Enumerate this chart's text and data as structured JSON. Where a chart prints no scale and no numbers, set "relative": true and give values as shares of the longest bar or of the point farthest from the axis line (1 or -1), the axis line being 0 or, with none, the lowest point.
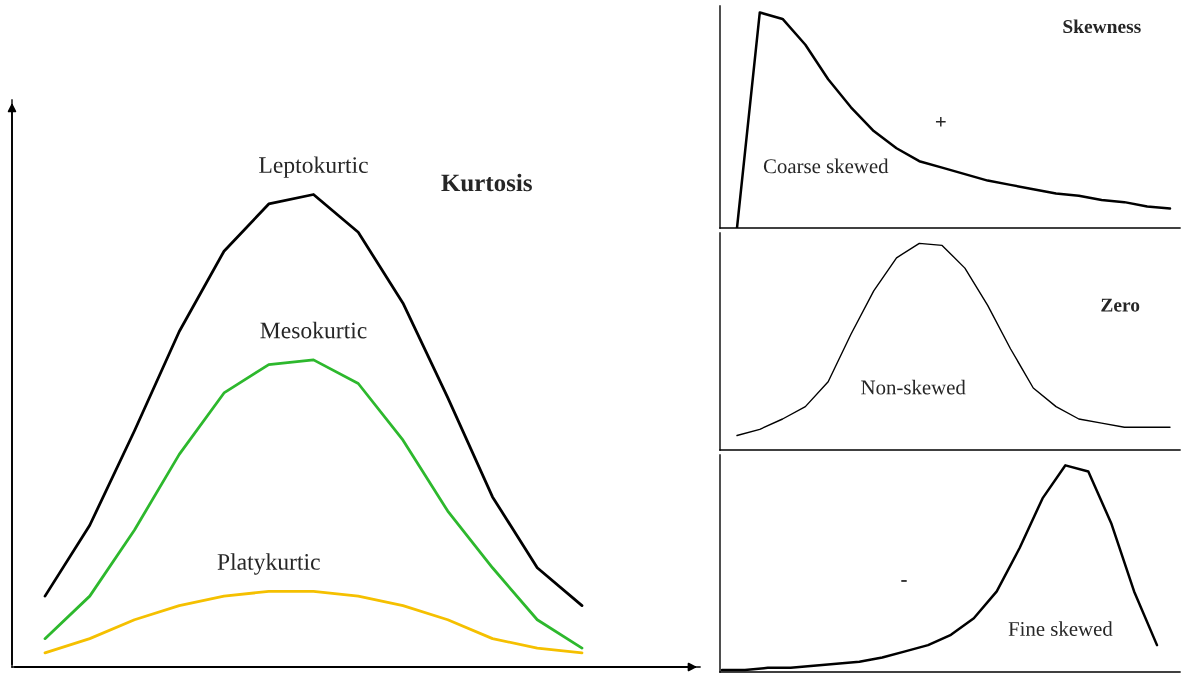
{
  "chart_data": [
    {
      "type": "line",
      "relative": true,
      "title": "Kurtosis",
      "categories": [
        null,
        null,
        null,
        null,
        null,
        null,
        null,
        null,
        null,
        null,
        null,
        null,
        null
      ],
      "series": [
        {
          "name": "Leptokurtic",
          "color": "#000000",
          "values": [
            0.15,
            0.3,
            0.5,
            0.71,
            0.88,
            0.98,
            1.0,
            0.92,
            0.77,
            0.57,
            0.36,
            0.21,
            0.13
          ]
        },
        {
          "name": "Mesokurtic",
          "color": "#2db82d",
          "values": [
            0.06,
            0.15,
            0.29,
            0.45,
            0.58,
            0.64,
            0.65,
            0.6,
            0.48,
            0.33,
            0.21,
            0.1,
            0.04
          ]
        },
        {
          "name": "Platykurtic",
          "color": "#f5c000",
          "values": [
            0.03,
            0.06,
            0.1,
            0.13,
            0.15,
            0.16,
            0.16,
            0.15,
            0.13,
            0.1,
            0.06,
            0.04,
            0.03
          ]
        }
      ]
    },
    {
      "type": "line",
      "relative": true,
      "title": "Skewness",
      "annotations": [
        "Coarse skewed",
        "+"
      ],
      "categories": [
        null,
        null,
        null,
        null,
        null,
        null,
        null,
        null,
        null,
        null,
        null,
        null,
        null,
        null,
        null,
        null,
        null,
        null,
        null,
        null
      ],
      "series": [
        {
          "color": "#000000",
          "values": [
            0,
            1.0,
            0.97,
            0.85,
            0.69,
            0.56,
            0.45,
            0.37,
            0.31,
            0.28,
            0.25,
            0.22,
            0.2,
            0.18,
            0.16,
            0.15,
            0.13,
            0.12,
            0.1,
            0.09
          ]
        }
      ]
    },
    {
      "type": "line",
      "relative": true,
      "title": "Zero",
      "annotations": [
        "Non-skewed"
      ],
      "categories": [
        null,
        null,
        null,
        null,
        null,
        null,
        null,
        null,
        null,
        null,
        null,
        null,
        null,
        null,
        null,
        null,
        null,
        null,
        null,
        null
      ],
      "series": [
        {
          "color": "#000000",
          "values": [
            0.07,
            0.1,
            0.15,
            0.21,
            0.33,
            0.56,
            0.77,
            0.93,
            1.0,
            0.99,
            0.88,
            0.7,
            0.49,
            0.3,
            0.21,
            0.15,
            0.13,
            0.11,
            0.11,
            0.11
          ]
        }
      ]
    },
    {
      "type": "line",
      "relative": true,
      "annotations": [
        "-",
        "Fine skewed"
      ],
      "categories": [
        null,
        null,
        null,
        null,
        null,
        null,
        null,
        null,
        null,
        null,
        null,
        null,
        null,
        null,
        null,
        null,
        null,
        null,
        null,
        null
      ],
      "series": [
        {
          "color": "#000000",
          "values": [
            0.01,
            0.01,
            0.02,
            0.02,
            0.03,
            0.04,
            0.05,
            0.07,
            0.1,
            0.13,
            0.18,
            0.26,
            0.39,
            0.6,
            0.84,
            1.0,
            0.97,
            0.72,
            0.39,
            0.13
          ]
        }
      ]
    }
  ]
}
